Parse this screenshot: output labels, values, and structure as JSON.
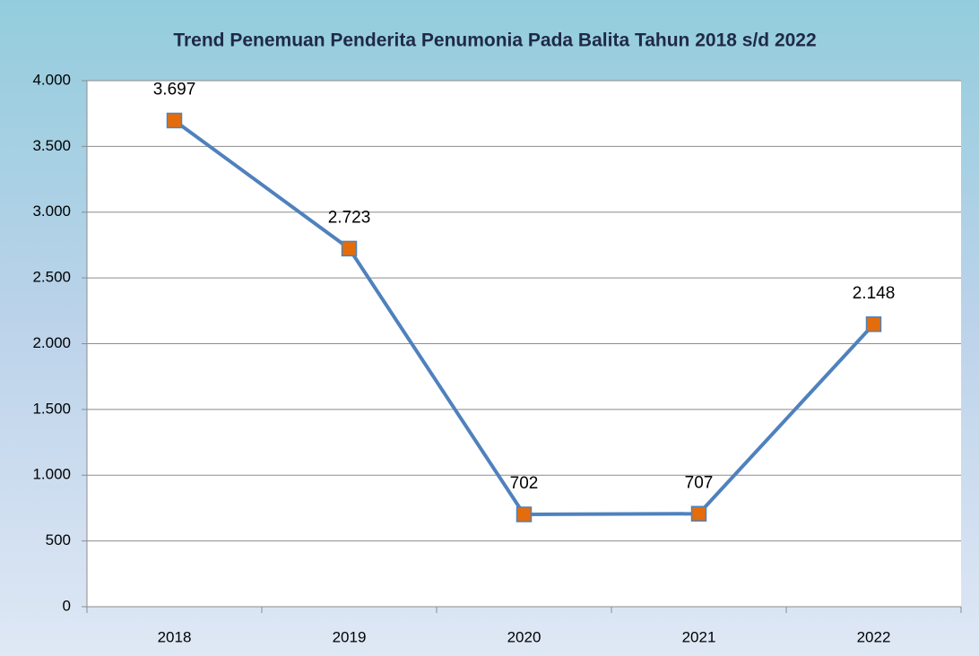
{
  "chart_data": {
    "type": "line",
    "title": "Trend Penemuan Penderita Penumonia Pada Balita Tahun 2018 s/d 2022",
    "categories": [
      "2018",
      "2019",
      "2020",
      "2021",
      "2022"
    ],
    "series": [
      {
        "color": "#4f81bd",
        "marker_color": "#e46c0a",
        "values": [
          3697,
          2723,
          702,
          707,
          2148
        ],
        "value_labels": [
          "3.697",
          "2.723",
          "702",
          "707",
          "2.148"
        ]
      }
    ],
    "ylim": [
      0,
      4000
    ],
    "yticks": [
      {
        "value": 0,
        "label": "0"
      },
      {
        "value": 500,
        "label": "500"
      },
      {
        "value": 1000,
        "label": "1.000"
      },
      {
        "value": 1500,
        "label": "1.500"
      },
      {
        "value": 2000,
        "label": "2.000"
      },
      {
        "value": 2500,
        "label": "2.500"
      },
      {
        "value": 3000,
        "label": "3.000"
      },
      {
        "value": 3500,
        "label": "3.500"
      },
      {
        "value": 4000,
        "label": "4.000"
      }
    ],
    "grid": true
  }
}
